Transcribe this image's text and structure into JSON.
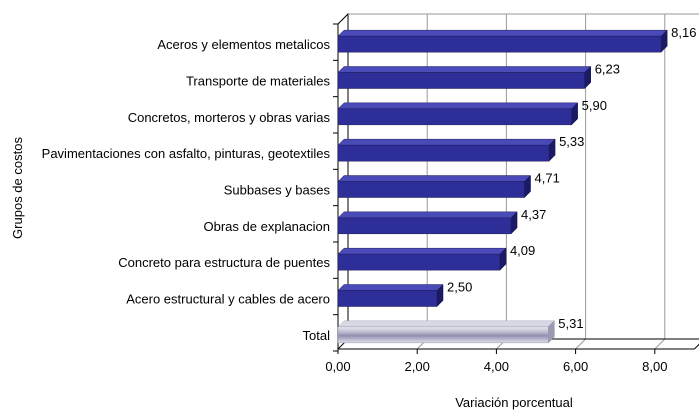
{
  "chart_data": {
    "type": "bar",
    "orientation": "horizontal",
    "categories": [
      "Aceros y elementos metalicos",
      "Transporte de materiales",
      "Concretos, morteros y obras varias",
      "Pavimentaciones con asfalto, pinturas, geotextiles",
      "Subbases y bases",
      "Obras de explanacion",
      "Concreto para estructura de puentes",
      "Acero estructural y cables de acero",
      "Total"
    ],
    "values": [
      8.16,
      6.23,
      5.9,
      5.33,
      4.71,
      4.37,
      4.09,
      2.5,
      5.31
    ],
    "value_labels": [
      "8,16",
      "6,23",
      "5,90",
      "5,33",
      "4,71",
      "4,37",
      "4,09",
      "2,50",
      "5,31"
    ],
    "x_ticks": [
      "0,00",
      "2,00",
      "4,00",
      "6,00",
      "8,00"
    ],
    "xlim": [
      0,
      9
    ],
    "xlabel": "Variación porcentual",
    "ylabel": "Grupos de costos",
    "title": "",
    "grid": "vertical",
    "style": "3d",
    "colors": {
      "bar_front": "#2e2e99",
      "bar_top": "#4a4ab8",
      "bar_side": "#1a1a66",
      "total_bar": "#c7c7d6",
      "grid": "#999999",
      "axis": "#000000"
    }
  }
}
